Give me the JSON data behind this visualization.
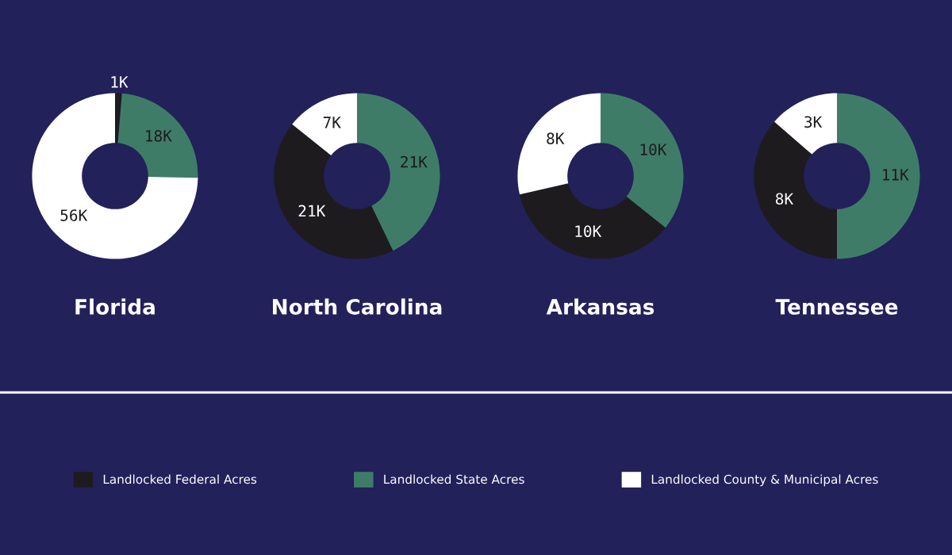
{
  "chart_data": [
    {
      "type": "donut",
      "title": "Florida",
      "categories": [
        "Landlocked Federal Acres",
        "Landlocked State Acres",
        "Landlocked County & Municipal Acres"
      ],
      "values": [
        1,
        18,
        56
      ],
      "colors": [
        "#1e1b1f",
        "#3f7c68",
        "#ffffff"
      ],
      "value_labels": [
        "1K",
        "18K",
        "56K"
      ],
      "legend": "bottom"
    },
    {
      "type": "donut",
      "title": "North Carolina",
      "categories": [
        null,
        null,
        null
      ],
      "values": [
        21,
        21,
        7
      ],
      "colors": [
        "#3f7c68",
        "#1e1b1f",
        "#ffffff"
      ],
      "value_labels": [
        "21K",
        "21K",
        "7K"
      ]
    },
    {
      "type": "donut",
      "title": "Arkansas",
      "categories": [
        null,
        null,
        null
      ],
      "values": [
        10,
        10,
        8
      ],
      "colors": [
        "#3f7c68",
        "#1e1b1f",
        "#ffffff"
      ],
      "value_labels": [
        "10K",
        "10K",
        "8K"
      ]
    },
    {
      "type": "donut",
      "title": "Tennessee",
      "categories": [
        null,
        null,
        null
      ],
      "values": [
        11,
        8,
        3
      ],
      "colors": [
        "#3f7c68",
        "#1e1b1f",
        "#ffffff"
      ],
      "value_labels": [
        "11K",
        "8K",
        "3K"
      ]
    }
  ]
}
